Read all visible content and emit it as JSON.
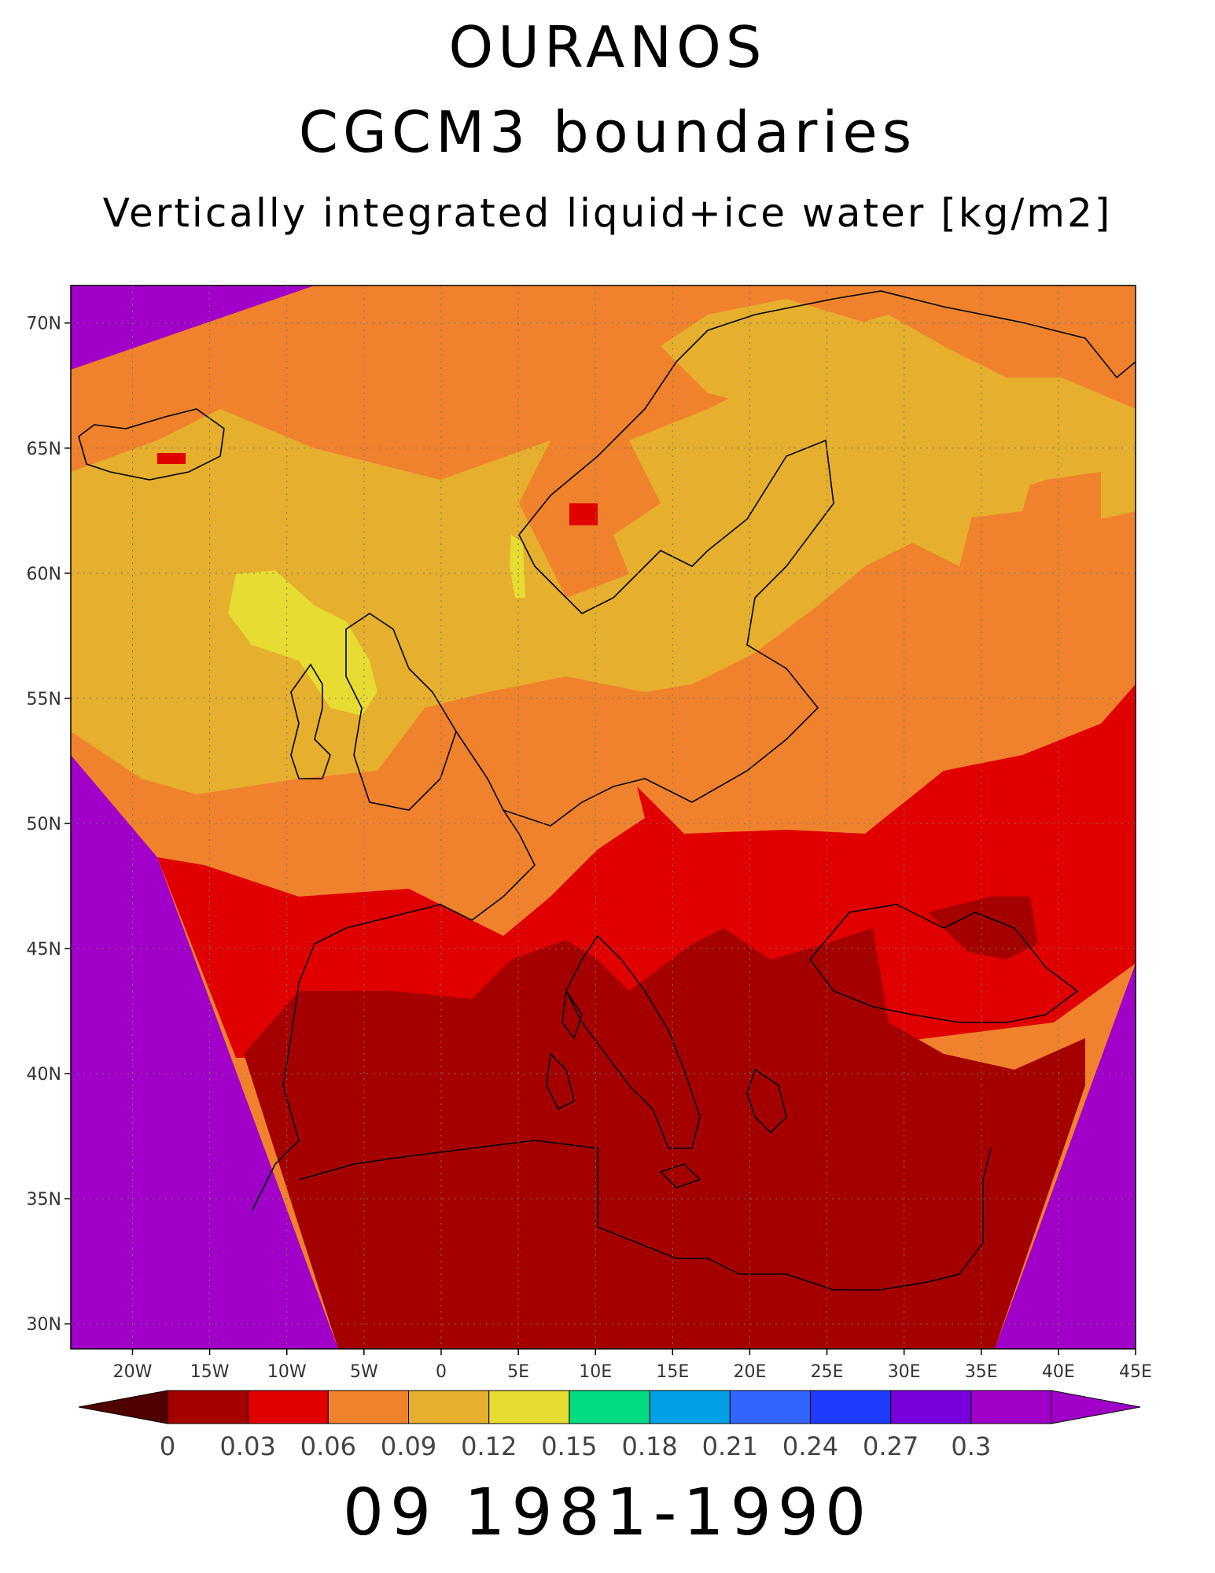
{
  "titles": {
    "line1": "OURANOS",
    "line2": "CGCM3 boundaries",
    "line3": "Vertically integrated liquid+ice water [kg/m2]",
    "footer": "09 1981-1990"
  },
  "map": {
    "lon_range": [
      -24,
      45
    ],
    "lat_range": [
      29,
      71.5
    ],
    "lon_ticks": [
      "20W",
      "15W",
      "10W",
      "5W",
      "0",
      "5E",
      "10E",
      "15E",
      "20E",
      "25E",
      "30E",
      "35E",
      "40E",
      "45E"
    ],
    "lat_ticks": [
      "70N",
      "65N",
      "60N",
      "55N",
      "50N",
      "45N",
      "40N",
      "35N",
      "30N"
    ],
    "colors": {
      "outside": "#a000c8",
      "band_0_03": "#a50000",
      "band_03_06": "#e00000",
      "band_06_09": "#f0822d",
      "band_09_12": "#e6af2d",
      "band_12_15": "#e6dc32"
    }
  },
  "colorbar": {
    "colors": [
      "#a50000",
      "#e00000",
      "#f0822d",
      "#e6af2d",
      "#e6dc32",
      "#00dc82",
      "#00a0e6",
      "#3264ff",
      "#1e3cff",
      "#7800dc",
      "#a000c8"
    ],
    "under_color": "#500000",
    "over_color": "#a000c8",
    "labels": [
      "0",
      "0.03",
      "0.06",
      "0.09",
      "0.12",
      "0.15",
      "0.18",
      "0.21",
      "0.24",
      "0.27",
      "0.3"
    ]
  }
}
